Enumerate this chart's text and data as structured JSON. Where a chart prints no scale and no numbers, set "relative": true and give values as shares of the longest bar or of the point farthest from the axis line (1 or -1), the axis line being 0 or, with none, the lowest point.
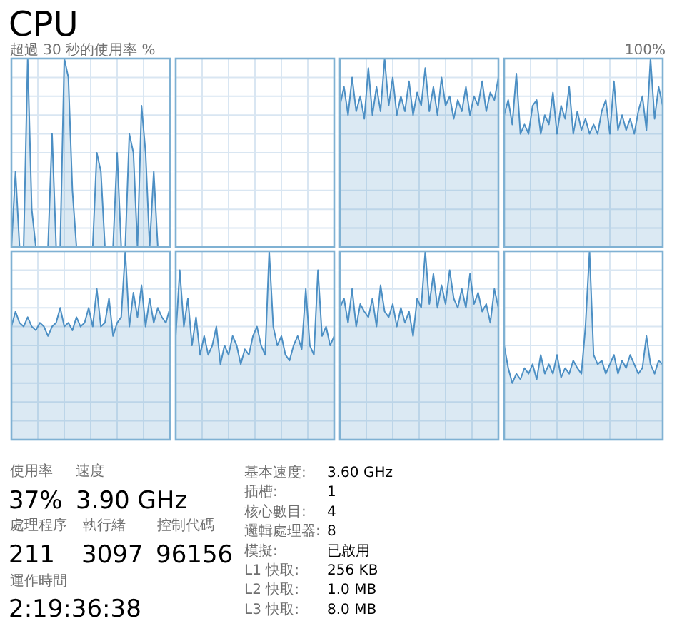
{
  "chart_data": [
    {
      "type": "other",
      "title": "CPU",
      "subtitle": "超過 30 秒的使用率 %",
      "annotations": [
        "100%"
      ]
    },
    {
      "type": "area",
      "relative": true,
      "grid": true,
      "color": "#4c8fc4",
      "categories": [
        null,
        null,
        null,
        null,
        null,
        null,
        null,
        null,
        null,
        null,
        null,
        null,
        null,
        null,
        null,
        null,
        null,
        null,
        null,
        null,
        null,
        null,
        null,
        null,
        null,
        null,
        null,
        null,
        null,
        null,
        null,
        null,
        null,
        null,
        null,
        null,
        null,
        null,
        null,
        null
      ],
      "values": [
        0,
        0.4,
        0,
        0,
        1.0,
        0.2,
        0,
        0,
        0,
        0,
        0.6,
        0,
        0,
        1.0,
        0.9,
        0.3,
        0,
        0,
        0,
        0,
        0,
        0.5,
        0.4,
        0,
        0,
        0,
        0.5,
        0,
        0,
        0.6,
        0.5,
        0,
        0.75,
        0.5,
        0,
        0.4,
        0,
        0,
        0,
        0
      ]
    },
    {
      "type": "other"
    },
    {
      "type": "area",
      "relative": true,
      "grid": true,
      "color": "#4c8fc4",
      "categories": [
        null,
        null,
        null,
        null,
        null,
        null,
        null,
        null,
        null,
        null,
        null,
        null,
        null,
        null,
        null,
        null,
        null,
        null,
        null,
        null,
        null,
        null,
        null,
        null,
        null,
        null,
        null,
        null,
        null,
        null,
        null,
        null,
        null,
        null,
        null,
        null,
        null,
        null,
        null,
        null
      ],
      "values": [
        0.75,
        0.85,
        0.7,
        0.9,
        0.72,
        0.8,
        0.68,
        0.95,
        0.7,
        0.85,
        0.72,
        1.0,
        0.75,
        0.9,
        0.7,
        0.8,
        0.72,
        0.88,
        0.7,
        0.82,
        0.75,
        0.95,
        0.72,
        0.85,
        0.7,
        0.9,
        0.75,
        0.8,
        0.68,
        0.78,
        0.72,
        0.85,
        0.7,
        0.8,
        0.75,
        0.88,
        0.72,
        0.82,
        0.78,
        0.9
      ]
    },
    {
      "type": "area",
      "relative": true,
      "grid": true,
      "color": "#4c8fc4",
      "categories": [
        null,
        null,
        null,
        null,
        null,
        null,
        null,
        null,
        null,
        null,
        null,
        null,
        null,
        null,
        null,
        null,
        null,
        null,
        null,
        null,
        null,
        null,
        null,
        null,
        null,
        null,
        null,
        null,
        null,
        null,
        null,
        null,
        null,
        null,
        null,
        null,
        null,
        null,
        null,
        null
      ],
      "values": [
        0.7,
        0.78,
        0.65,
        0.92,
        0.6,
        0.65,
        0.6,
        0.75,
        0.78,
        0.6,
        0.7,
        0.65,
        0.82,
        0.6,
        0.75,
        0.68,
        0.85,
        0.6,
        0.72,
        0.62,
        0.68,
        0.6,
        0.65,
        0.6,
        0.72,
        0.78,
        0.6,
        0.88,
        0.62,
        0.7,
        0.62,
        0.68,
        0.6,
        0.72,
        0.8,
        0.62,
        1.0,
        0.68,
        0.85,
        0.75
      ]
    },
    {
      "type": "area",
      "relative": true,
      "grid": true,
      "color": "#4c8fc4",
      "categories": [
        null,
        null,
        null,
        null,
        null,
        null,
        null,
        null,
        null,
        null,
        null,
        null,
        null,
        null,
        null,
        null,
        null,
        null,
        null,
        null,
        null,
        null,
        null,
        null,
        null,
        null,
        null,
        null,
        null,
        null,
        null,
        null,
        null,
        null,
        null,
        null,
        null,
        null,
        null,
        null
      ],
      "values": [
        0.6,
        0.68,
        0.62,
        0.6,
        0.65,
        0.6,
        0.58,
        0.62,
        0.6,
        0.55,
        0.6,
        0.62,
        0.7,
        0.6,
        0.62,
        0.58,
        0.65,
        0.6,
        0.62,
        0.7,
        0.6,
        0.8,
        0.6,
        0.62,
        0.75,
        0.55,
        0.62,
        0.65,
        1.0,
        0.6,
        0.78,
        0.65,
        0.82,
        0.6,
        0.75,
        0.62,
        0.7,
        0.65,
        0.62,
        0.7
      ]
    },
    {
      "type": "area",
      "relative": true,
      "grid": true,
      "color": "#4c8fc4",
      "categories": [
        null,
        null,
        null,
        null,
        null,
        null,
        null,
        null,
        null,
        null,
        null,
        null,
        null,
        null,
        null,
        null,
        null,
        null,
        null,
        null,
        null,
        null,
        null,
        null,
        null,
        null,
        null,
        null,
        null,
        null,
        null,
        null,
        null,
        null,
        null,
        null,
        null,
        null,
        null,
        null
      ],
      "values": [
        0.55,
        0.9,
        0.6,
        0.75,
        0.5,
        0.65,
        0.45,
        0.55,
        0.45,
        0.5,
        0.6,
        0.4,
        0.5,
        0.45,
        0.55,
        0.5,
        0.4,
        0.48,
        0.45,
        0.55,
        0.6,
        0.5,
        0.45,
        1.0,
        0.6,
        0.5,
        0.55,
        0.45,
        0.42,
        0.5,
        0.55,
        0.48,
        0.8,
        0.5,
        0.45,
        0.9,
        0.55,
        0.6,
        0.5,
        0.55
      ]
    },
    {
      "type": "area",
      "relative": true,
      "grid": true,
      "color": "#4c8fc4",
      "categories": [
        null,
        null,
        null,
        null,
        null,
        null,
        null,
        null,
        null,
        null,
        null,
        null,
        null,
        null,
        null,
        null,
        null,
        null,
        null,
        null,
        null,
        null,
        null,
        null,
        null,
        null,
        null,
        null,
        null,
        null,
        null,
        null,
        null,
        null,
        null,
        null,
        null,
        null,
        null,
        null
      ],
      "values": [
        0.7,
        0.75,
        0.62,
        0.8,
        0.6,
        0.72,
        0.68,
        0.65,
        0.75,
        0.6,
        0.82,
        0.68,
        0.65,
        0.72,
        0.6,
        0.7,
        0.62,
        0.68,
        0.55,
        0.75,
        0.7,
        1.0,
        0.72,
        0.88,
        0.7,
        0.82,
        0.72,
        0.9,
        0.75,
        0.7,
        0.8,
        0.7,
        0.88,
        0.72,
        0.78,
        0.68,
        0.72,
        0.62,
        0.8,
        0.7
      ]
    },
    {
      "type": "area",
      "relative": true,
      "grid": true,
      "color": "#4c8fc4",
      "categories": [
        null,
        null,
        null,
        null,
        null,
        null,
        null,
        null,
        null,
        null,
        null,
        null,
        null,
        null,
        null,
        null,
        null,
        null,
        null,
        null,
        null,
        null,
        null,
        null,
        null,
        null,
        null,
        null,
        null,
        null,
        null,
        null,
        null,
        null,
        null,
        null,
        null,
        null,
        null,
        null
      ],
      "values": [
        0.5,
        0.38,
        0.3,
        0.35,
        0.32,
        0.38,
        0.35,
        0.4,
        0.32,
        0.45,
        0.35,
        0.4,
        0.35,
        0.45,
        0.33,
        0.38,
        0.35,
        0.42,
        0.38,
        0.35,
        0.6,
        1.0,
        0.45,
        0.4,
        0.42,
        0.35,
        0.4,
        0.45,
        0.35,
        0.42,
        0.38,
        0.45,
        0.4,
        0.35,
        0.38,
        0.55,
        0.4,
        0.35,
        0.42,
        0.4
      ]
    },
    {
      "type": "other",
      "annotations": [
        "使用率",
        "37%",
        "速度",
        "3.90 GHz",
        "處理程序",
        "211",
        "執行緒",
        "3097",
        "控制代碼",
        "96156",
        "運作時間",
        "2:19:36:38",
        "基本速度:",
        "3.60 GHz",
        "插槽:",
        "1",
        "核心數目:",
        "4",
        "邏輯處理器:",
        "8",
        "模擬:",
        "已啟用",
        "L1 快取:",
        "256 KB",
        "L2 快取:",
        "1.0 MB",
        "L3 快取:",
        "8.0 MB"
      ]
    }
  ]
}
